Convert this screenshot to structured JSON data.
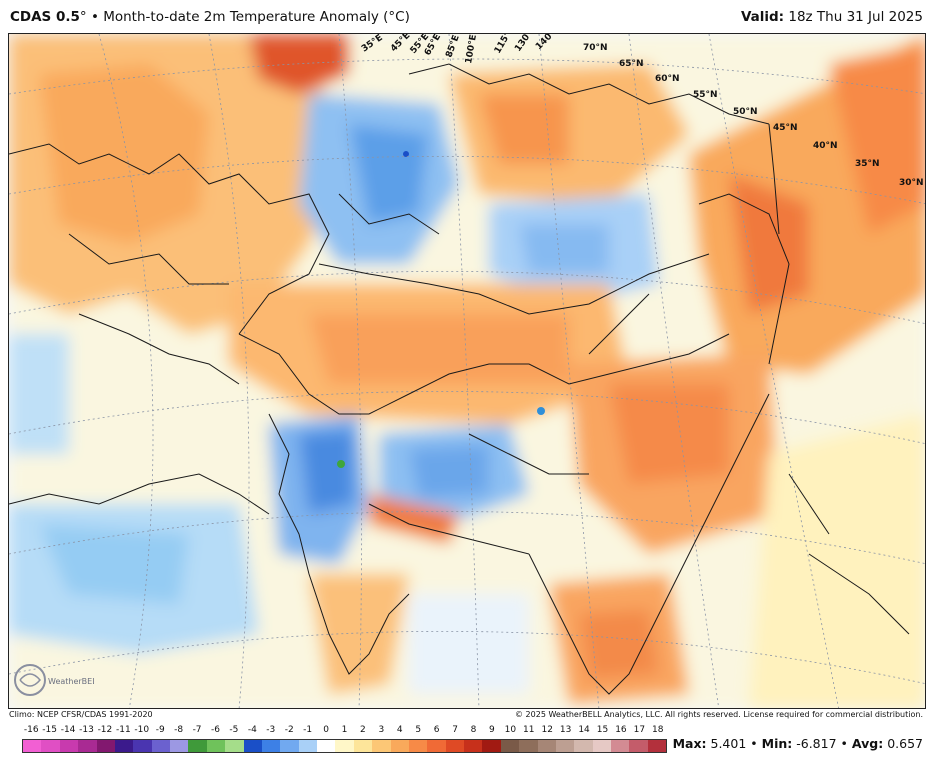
{
  "header": {
    "model": "CDAS 0.5",
    "degree": "°",
    "separator": "•",
    "description": "Month-to-date 2m Temperature Anomaly (°C)",
    "valid_label": "Valid:",
    "valid_value": "18z Thu 31 Jul 2025"
  },
  "map": {
    "lon_labels": [
      "35°E",
      "45°E",
      "55°E",
      "65°E",
      "85°E",
      "100°E",
      "115°E",
      "130°E",
      "140°E"
    ],
    "lat_labels": [
      "70°N",
      "65°N",
      "60°N",
      "55°N",
      "50°N",
      "45°N",
      "40°N",
      "35°N",
      "30°N"
    ]
  },
  "footer": {
    "climo": "Climo: NCEP CFSR/CDAS 1991-2020",
    "copyright": "© 2025 WeatherBELL Analytics, LLC. All rights reserved. License required for commercial distribution.",
    "logo_text": "WeatherBELL"
  },
  "colorbar": {
    "labels": [
      "-16",
      "-15",
      "-14",
      "-13",
      "-12",
      "-11",
      "-10",
      "-9",
      "-8",
      "-7",
      "-6",
      "-5",
      "-4",
      "-3",
      "-2",
      "-1",
      "0",
      "1",
      "2",
      "3",
      "4",
      "5",
      "6",
      "7",
      "8",
      "9",
      "10",
      "11",
      "12",
      "13",
      "14",
      "15",
      "16",
      "17",
      "18"
    ],
    "colors": [
      "#f25fd3",
      "#e04fc4",
      "#c83aae",
      "#a92a93",
      "#82186f",
      "#3b1a8c",
      "#4a35b0",
      "#6b61cf",
      "#9c98e3",
      "#3f9a3a",
      "#6fc25b",
      "#a5dd8a",
      "#1a4fc7",
      "#3d80e6",
      "#71a9f0",
      "#a9d0f7",
      "#ffffff",
      "#fff7c8",
      "#fde59a",
      "#fcc776",
      "#f9a95b",
      "#f78a47",
      "#f06a36",
      "#df4a25",
      "#c7301b",
      "#a11a12",
      "#7a5a48",
      "#8e6e5b",
      "#a68676",
      "#bd9f92",
      "#d3b8ae",
      "#e6c9c5",
      "#d38b93",
      "#c45c6a",
      "#b3303c"
    ]
  },
  "stats": {
    "max_label": "Max:",
    "max_value": "5.401",
    "min_label": "Min:",
    "min_value": "-6.817",
    "avg_label": "Avg:",
    "avg_value": "0.657",
    "bullet": "•"
  }
}
